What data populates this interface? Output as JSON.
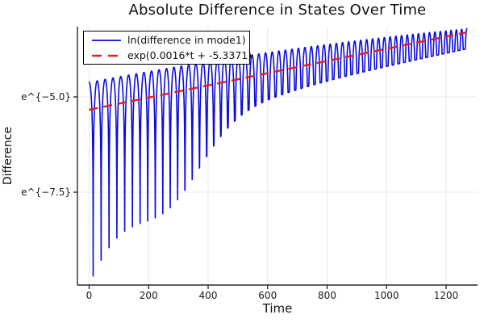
{
  "header": {
    "title": "Absolute Difference in States Over Time"
  },
  "colors": {
    "series_blue": "#0b0be0",
    "fit_red": "#ea1e1a",
    "grid": "#e8e8e8",
    "spine": "#2a2a2a",
    "text": "#111111"
  },
  "chart_data": {
    "type": "line",
    "title": "Absolute Difference in States Over Time",
    "xlabel": "Time",
    "ylabel": "Difference",
    "grid": true,
    "legend_position": "top-left",
    "xlim": [
      -40,
      1310
    ],
    "ylim_ln": [
      -9.94,
      -3.16
    ],
    "x_ticks": [
      {
        "t": 0,
        "label": "0"
      },
      {
        "t": 200,
        "label": "200"
      },
      {
        "t": 400,
        "label": "400"
      },
      {
        "t": 600,
        "label": "600"
      },
      {
        "t": 800,
        "label": "800"
      },
      {
        "t": 1000,
        "label": "1000"
      },
      {
        "t": 1200,
        "label": "1200"
      }
    ],
    "y_ticks": [
      {
        "ln": -5.0,
        "label": "e^{−5.0}"
      },
      {
        "ln": -7.5,
        "label": "e^{−7.5}"
      }
    ],
    "series": [
      {
        "name": "ln(difference in mode1)",
        "color": "#0b0be0",
        "style": "solid",
        "line_width": 1.6,
        "model": {
          "comment": "ln|A(t)cos(phi(t))| : y=fit+off+ln(max(|cos phi|, exp(-(off+dip))))",
          "t_start": 0,
          "t_end": 1270,
          "samples": 2600,
          "fit_slope": 0.0016,
          "fit_intercept": -5.3371,
          "period_start": 54,
          "period_chirp": 0.015,
          "peak_offset_poly": [
            0.72,
            -0.0001283,
            -2.878e-07
          ],
          "dip_base": 0.42,
          "dip_amp": 4.1,
          "dip_tau": 220,
          "dip_bump_amp": 1.4,
          "dip_bump_center": 270,
          "dip_bump_width": 160
        }
      },
      {
        "name": "exp(0.0016*t + -5.3371)",
        "color": "#ea1e1a",
        "style": "dashed",
        "line_width": 2.4,
        "dash": [
          11,
          7
        ],
        "model": {
          "slope": 0.0016,
          "intercept": -5.3371,
          "t_start": 0,
          "t_end": 1268
        }
      }
    ]
  },
  "legend": {
    "items": [
      {
        "label": "ln(difference in mode1)"
      },
      {
        "label": "exp(0.0016*t + -5.3371)"
      }
    ]
  }
}
